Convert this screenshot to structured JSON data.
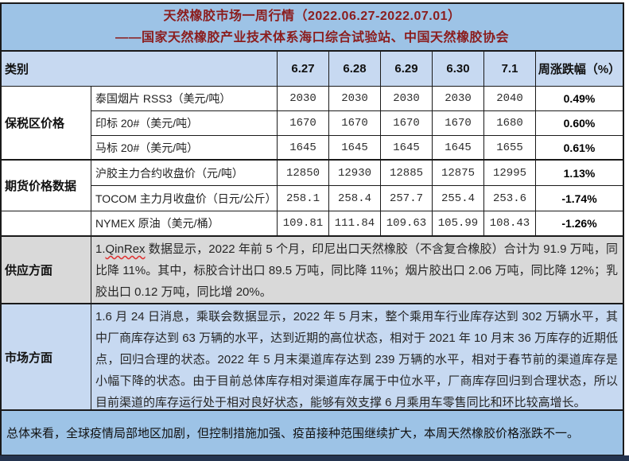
{
  "title": {
    "line1": "天然橡胶市场一周行情（2022.06.27-2022.07.01）",
    "line2": "——国家天然橡胶产业技术体系海口综合试验站、中国天然橡胶协会"
  },
  "table": {
    "header": {
      "category": "类别",
      "dates": [
        "6.27",
        "6.28",
        "6.29",
        "6.30",
        "7.1"
      ],
      "change_label": "周涨跌幅（%）"
    },
    "groups": {
      "bonded": "保税区价格",
      "futures": "期货价格数据"
    },
    "rows": [
      {
        "item": "泰国烟片 RSS3（美元/吨）",
        "values": [
          "2030",
          "2030",
          "2030",
          "2030",
          "2040"
        ],
        "change": "0.49%"
      },
      {
        "item": "印标 20#（美元/吨）",
        "values": [
          "1670",
          "1670",
          "1670",
          "1670",
          "1680"
        ],
        "change": "0.60%"
      },
      {
        "item": "马标 20#（美元/吨）",
        "values": [
          "1645",
          "1645",
          "1645",
          "1645",
          "1655"
        ],
        "change": "0.61%"
      },
      {
        "item": "沪胶主力合约收盘价（元/吨）",
        "values": [
          "12850",
          "12930",
          "12885",
          "12875",
          "12995"
        ],
        "change": "1.13%"
      },
      {
        "item": "TOCOM 主力月收盘价（日元/公斤）",
        "values": [
          "258.1",
          "258.4",
          "257.7",
          "255.4",
          "253.6"
        ],
        "change": "-1.74%"
      },
      {
        "item": "NYMEX 原油（美元/桶）",
        "values": [
          "109.81",
          "111.84",
          "109.63",
          "105.99",
          "108.43"
        ],
        "change": "-1.26%"
      }
    ],
    "supply": {
      "label": "供应方面",
      "prefix": "1.",
      "brand": "QinRex",
      "text": " 数据显示，2022 年前 5 个月，印尼出口天然橡胶（不含复合橡胶）合计为 91.9 万吨，同比降 11%。其中，标胶合计出口 89.5 万吨，同比降 11%；烟片胶出口 2.06 万吨，同比降 12%；乳胶出口 0.12 万吨，同比增 20%。"
    },
    "market": {
      "label": "市场方面",
      "text": "1.6 月 24 日消息，乘联会数据显示，2022 年 5 月末，整个乘用车行业库存达到 302 万辆水平，其中厂商库存达到 63 万辆的水平，达到近期的高位状态，相对于 2021 年 10 月末 36 万库存的近期低点，回归合理的状态。2022 年 5 月末渠道库存达到 239 万辆的水平，相对于春节前的渠道库存是小幅下降的状态。由于目前总体库存相对渠道库存属于中位水平，厂商库存回归到合理状态，所以目前渠道的库存运行处于相对良好状态，能够有效支撑 6 月乘用车零售同比和环比较高增长。"
    },
    "summary": "总体来看，全球疫情局部地区加剧，但控制措施加强、疫苗接种范围继续扩大，本周天然橡胶价格涨跌不一。"
  },
  "colors": {
    "title_text": "#8b1d1d",
    "sheet_blue": "#9dc3e6",
    "header_blue": "#c7d9f1",
    "supply_gray": "#d9d9d9",
    "cell_white": "#ffffff",
    "border": "#1a1a1a",
    "spellcheck_wave": "#e03030",
    "bottom_edge": "#24344f"
  }
}
